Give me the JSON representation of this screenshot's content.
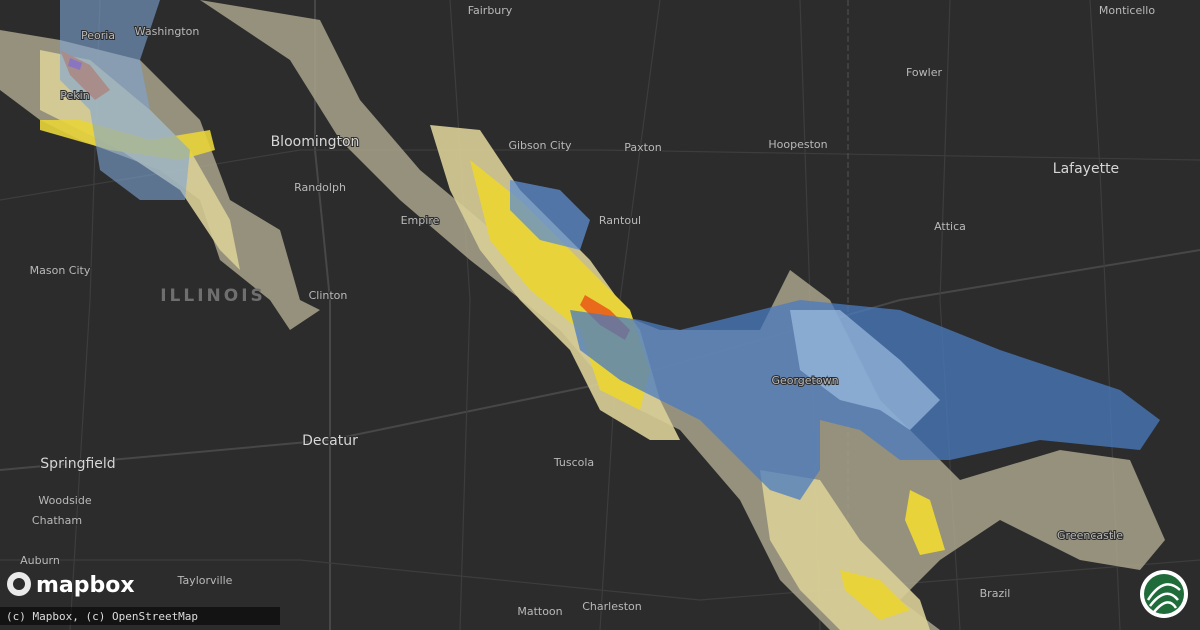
{
  "map": {
    "labels": [
      "Fairbury",
      "Monticello",
      "Peoria",
      "Washington",
      "Pekin",
      "Fowler",
      "Bloomington",
      "Gibson City",
      "Paxton",
      "Hoopeston",
      "Lafayette",
      "Randolph",
      "Rantoul",
      "Empire",
      "Attica",
      "Mason City",
      "Clinton",
      "Georgetown",
      "Decatur",
      "Springfield",
      "Tuscola",
      "Woodside",
      "Chatham",
      "Greencastle",
      "Auburn",
      "Taylorville",
      "Brazil",
      "Mattoon",
      "Charleston"
    ],
    "state_label": "ILLINOIS"
  },
  "logo": "mapbox",
  "attribution": "(c) Mapbox, (c) OpenStreetMap"
}
